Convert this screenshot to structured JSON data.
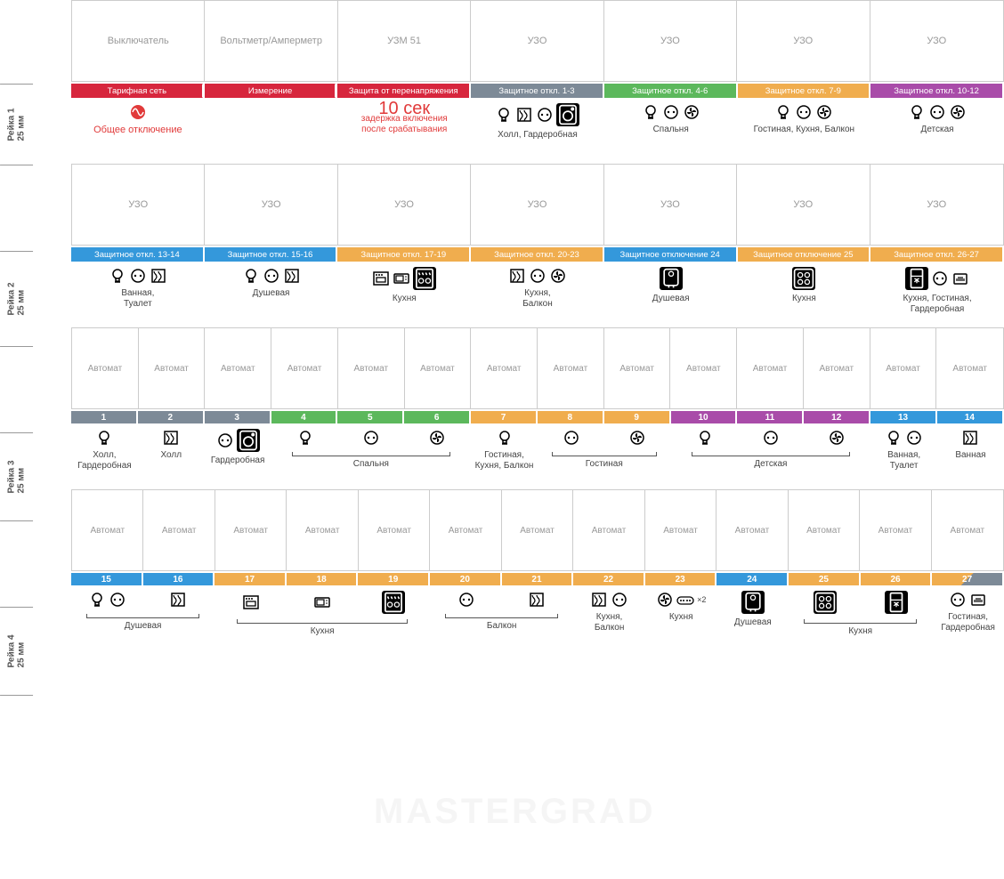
{
  "colors": {
    "red": "#d7263d",
    "grey": "#7d8a97",
    "green": "#5cb85c",
    "orange": "#f0ad4e",
    "purple": "#a94ca9",
    "blue": "#3498db",
    "border": "#cccccc",
    "text_muted": "#999999",
    "text": "#333333"
  },
  "rails": [
    {
      "name": "Рейка 1",
      "sub": "25 мм",
      "top_h": 92,
      "bot_h": 92
    },
    {
      "name": "Рейка 2",
      "sub": "25 мм",
      "top_h": 92,
      "bot_h": 108
    },
    {
      "name": "Рейка 3",
      "sub": "25 мм",
      "top_h": 92,
      "bot_h": 100
    },
    {
      "name": "Рейка 4",
      "sub": "25 мм",
      "top_h": 92,
      "bot_h": 100
    }
  ],
  "slot_labels": {
    "switch": "Выключатель",
    "meter": "Вольтметр/Амперметр",
    "uzm": "УЗМ 51",
    "uzo": "УЗО",
    "avtomat": "Автомат"
  },
  "row1": {
    "slots": [
      {
        "label": "Выключатель",
        "span": 1
      },
      {
        "label": "Вольтметр/Амперметр",
        "span": 1
      },
      {
        "label": "УЗМ 51",
        "span": 1
      },
      {
        "label": "УЗО",
        "span": 1
      },
      {
        "label": "УЗО",
        "span": 1
      },
      {
        "label": "УЗО",
        "span": 1
      },
      {
        "label": "УЗО",
        "span": 1
      }
    ],
    "tags": [
      {
        "text": "Тарифная сеть",
        "color": "red",
        "span": 1,
        "arrow": true
      },
      {
        "text": "Измерение",
        "color": "red",
        "span": 1,
        "arrow": true
      },
      {
        "text": "Защита от перенапряжения",
        "color": "red",
        "span": 1
      },
      {
        "text": "Защитное откл. 1-3",
        "color": "grey",
        "span": 1
      },
      {
        "text": "Защитное откл. 4-6",
        "color": "green",
        "span": 1
      },
      {
        "text": "Защитное откл. 7-9",
        "color": "orange",
        "span": 1
      },
      {
        "text": "Защитное откл. 10-12",
        "color": "purple",
        "span": 1
      }
    ],
    "descs": [
      {
        "span": 1,
        "special": "shutdown",
        "text": "Общее отключение"
      },
      {
        "span": 1,
        "special": "empty"
      },
      {
        "span": 1,
        "special": "delay",
        "big": "10 сек",
        "small1": "задержка включения",
        "small2": "после срабатывания"
      },
      {
        "span": 1,
        "icons": [
          "bulb",
          "floor",
          "socket",
          "washer_box"
        ],
        "text": "Холл, Гардеробная"
      },
      {
        "span": 1,
        "icons": [
          "bulb",
          "socket",
          "fan"
        ],
        "text": "Спальня"
      },
      {
        "span": 1,
        "icons": [
          "bulb",
          "socket",
          "fan"
        ],
        "text": "Гостиная, Кухня, Балкон"
      },
      {
        "span": 1,
        "icons": [
          "bulb",
          "socket",
          "fan"
        ],
        "text": "Детская"
      }
    ]
  },
  "row2": {
    "slots": [
      {
        "label": "УЗО"
      },
      {
        "label": "УЗО"
      },
      {
        "label": "УЗО"
      },
      {
        "label": "УЗО"
      },
      {
        "label": "УЗО"
      },
      {
        "label": "УЗО"
      },
      {
        "label": "УЗО"
      }
    ],
    "tags": [
      {
        "text": "Защитное откл. 13-14",
        "color": "blue"
      },
      {
        "text": "Защитное откл. 15-16",
        "color": "blue"
      },
      {
        "text": "Защитное откл. 17-19",
        "color": "orange"
      },
      {
        "text": "Защитное откл. 20-23",
        "color": "orange"
      },
      {
        "text": "Защитное отключение 24",
        "color": "blue"
      },
      {
        "text": "Защитное отключение 25",
        "color": "orange"
      },
      {
        "text": "Защитное откл. 26-27",
        "color": "orange"
      }
    ],
    "descs": [
      {
        "icons": [
          "bulb",
          "socket",
          "floor"
        ],
        "text": "Ванная,\nТуалет"
      },
      {
        "icons": [
          "bulb",
          "socket",
          "floor"
        ],
        "text": "Душевая"
      },
      {
        "icons": [
          "oven",
          "micro",
          "dish_box"
        ],
        "text": "Кухня"
      },
      {
        "icons": [
          "floor",
          "socket",
          "fan"
        ],
        "text": "Кухня,\nБалкон"
      },
      {
        "icons": [
          "boiler_box"
        ],
        "text": "Душевая"
      },
      {
        "icons": [
          "hob_box"
        ],
        "text": "Кухня"
      },
      {
        "icons": [
          "fridge_box",
          "socket",
          "net"
        ],
        "text": "Кухня, Гостиная,\nГардеробная"
      }
    ]
  },
  "row3": {
    "count": 14,
    "nums": [
      {
        "n": "1",
        "c": "grey"
      },
      {
        "n": "2",
        "c": "grey"
      },
      {
        "n": "3",
        "c": "grey"
      },
      {
        "n": "4",
        "c": "green"
      },
      {
        "n": "5",
        "c": "green"
      },
      {
        "n": "6",
        "c": "green"
      },
      {
        "n": "7",
        "c": "orange"
      },
      {
        "n": "8",
        "c": "orange"
      },
      {
        "n": "9",
        "c": "orange"
      },
      {
        "n": "10",
        "c": "purple"
      },
      {
        "n": "11",
        "c": "purple"
      },
      {
        "n": "12",
        "c": "purple"
      },
      {
        "n": "13",
        "c": "blue"
      },
      {
        "n": "14",
        "c": "blue"
      }
    ],
    "groups": [
      {
        "span": 1,
        "icons": [
          "bulb"
        ],
        "text": "Холл,\nГардеробная"
      },
      {
        "span": 1,
        "icons": [
          "floor"
        ],
        "text": "Холл"
      },
      {
        "span": 1,
        "icons": [
          "socket",
          "washer_box"
        ],
        "text": "Гардеробная"
      },
      {
        "span": 3,
        "bracket": true,
        "text": "Спальня",
        "sub": [
          [
            "bulb"
          ],
          [
            "socket"
          ],
          [
            "fan"
          ]
        ]
      },
      {
        "span": 1,
        "icons": [
          "bulb"
        ],
        "text": "Гостиная,\nКухня, Балкон"
      },
      {
        "span": 2,
        "bracket": true,
        "text": "Гостиная",
        "sub": [
          [
            "socket"
          ],
          [
            "fan"
          ]
        ]
      },
      {
        "span": 3,
        "bracket": true,
        "text": "Детская",
        "sub": [
          [
            "bulb"
          ],
          [
            "socket"
          ],
          [
            "fan"
          ]
        ]
      },
      {
        "span": 1,
        "icons": [
          "bulb",
          "socket"
        ],
        "text": "Ванная,\nТуалет"
      },
      {
        "span": 1,
        "icons": [
          "floor"
        ],
        "text": "Ванная"
      }
    ]
  },
  "row4": {
    "count": 13,
    "nums": [
      {
        "n": "15",
        "c": "blue"
      },
      {
        "n": "16",
        "c": "blue"
      },
      {
        "n": "17",
        "c": "orange"
      },
      {
        "n": "18",
        "c": "orange"
      },
      {
        "n": "19",
        "c": "orange"
      },
      {
        "n": "20",
        "c": "orange"
      },
      {
        "n": "21",
        "c": "orange"
      },
      {
        "n": "22",
        "c": "orange"
      },
      {
        "n": "23",
        "c": "orange"
      },
      {
        "n": "24",
        "c": "blue"
      },
      {
        "n": "25",
        "c": "orange"
      },
      {
        "n": "26",
        "c": "orange"
      },
      {
        "n": "27",
        "c": "orange",
        "diag": true
      }
    ],
    "groups": [
      {
        "span": 2,
        "bracket": true,
        "text": "Душевая",
        "sub": [
          [
            "bulb",
            "socket"
          ],
          [
            "floor"
          ]
        ]
      },
      {
        "span": 3,
        "bracket": true,
        "text": "Кухня",
        "sub": [
          [
            "oven"
          ],
          [
            "micro"
          ],
          [
            "dish_box"
          ]
        ]
      },
      {
        "span": 2,
        "bracket": true,
        "text": "Балкон",
        "sub": [
          [
            "socket"
          ],
          [
            "floor"
          ]
        ]
      },
      {
        "span": 1,
        "icons": [
          "floor",
          "socket"
        ],
        "text": "Кухня,\nБалкон"
      },
      {
        "span": 1,
        "icons": [
          "fan",
          "msocket"
        ],
        "text": "Кухня",
        "extra": "×2"
      },
      {
        "span": 1,
        "icons": [
          "boiler_box"
        ],
        "text": "Душевая"
      },
      {
        "span": 2,
        "bracket": true,
        "text": "Кухня",
        "sub": [
          [
            "hob_box"
          ],
          [
            "fridge_box"
          ]
        ]
      },
      {
        "span": 1,
        "icons": [
          "socket",
          "net"
        ],
        "text": "Гостиная,\nГардеробная"
      }
    ]
  },
  "watermark": "MASTERGRAD"
}
